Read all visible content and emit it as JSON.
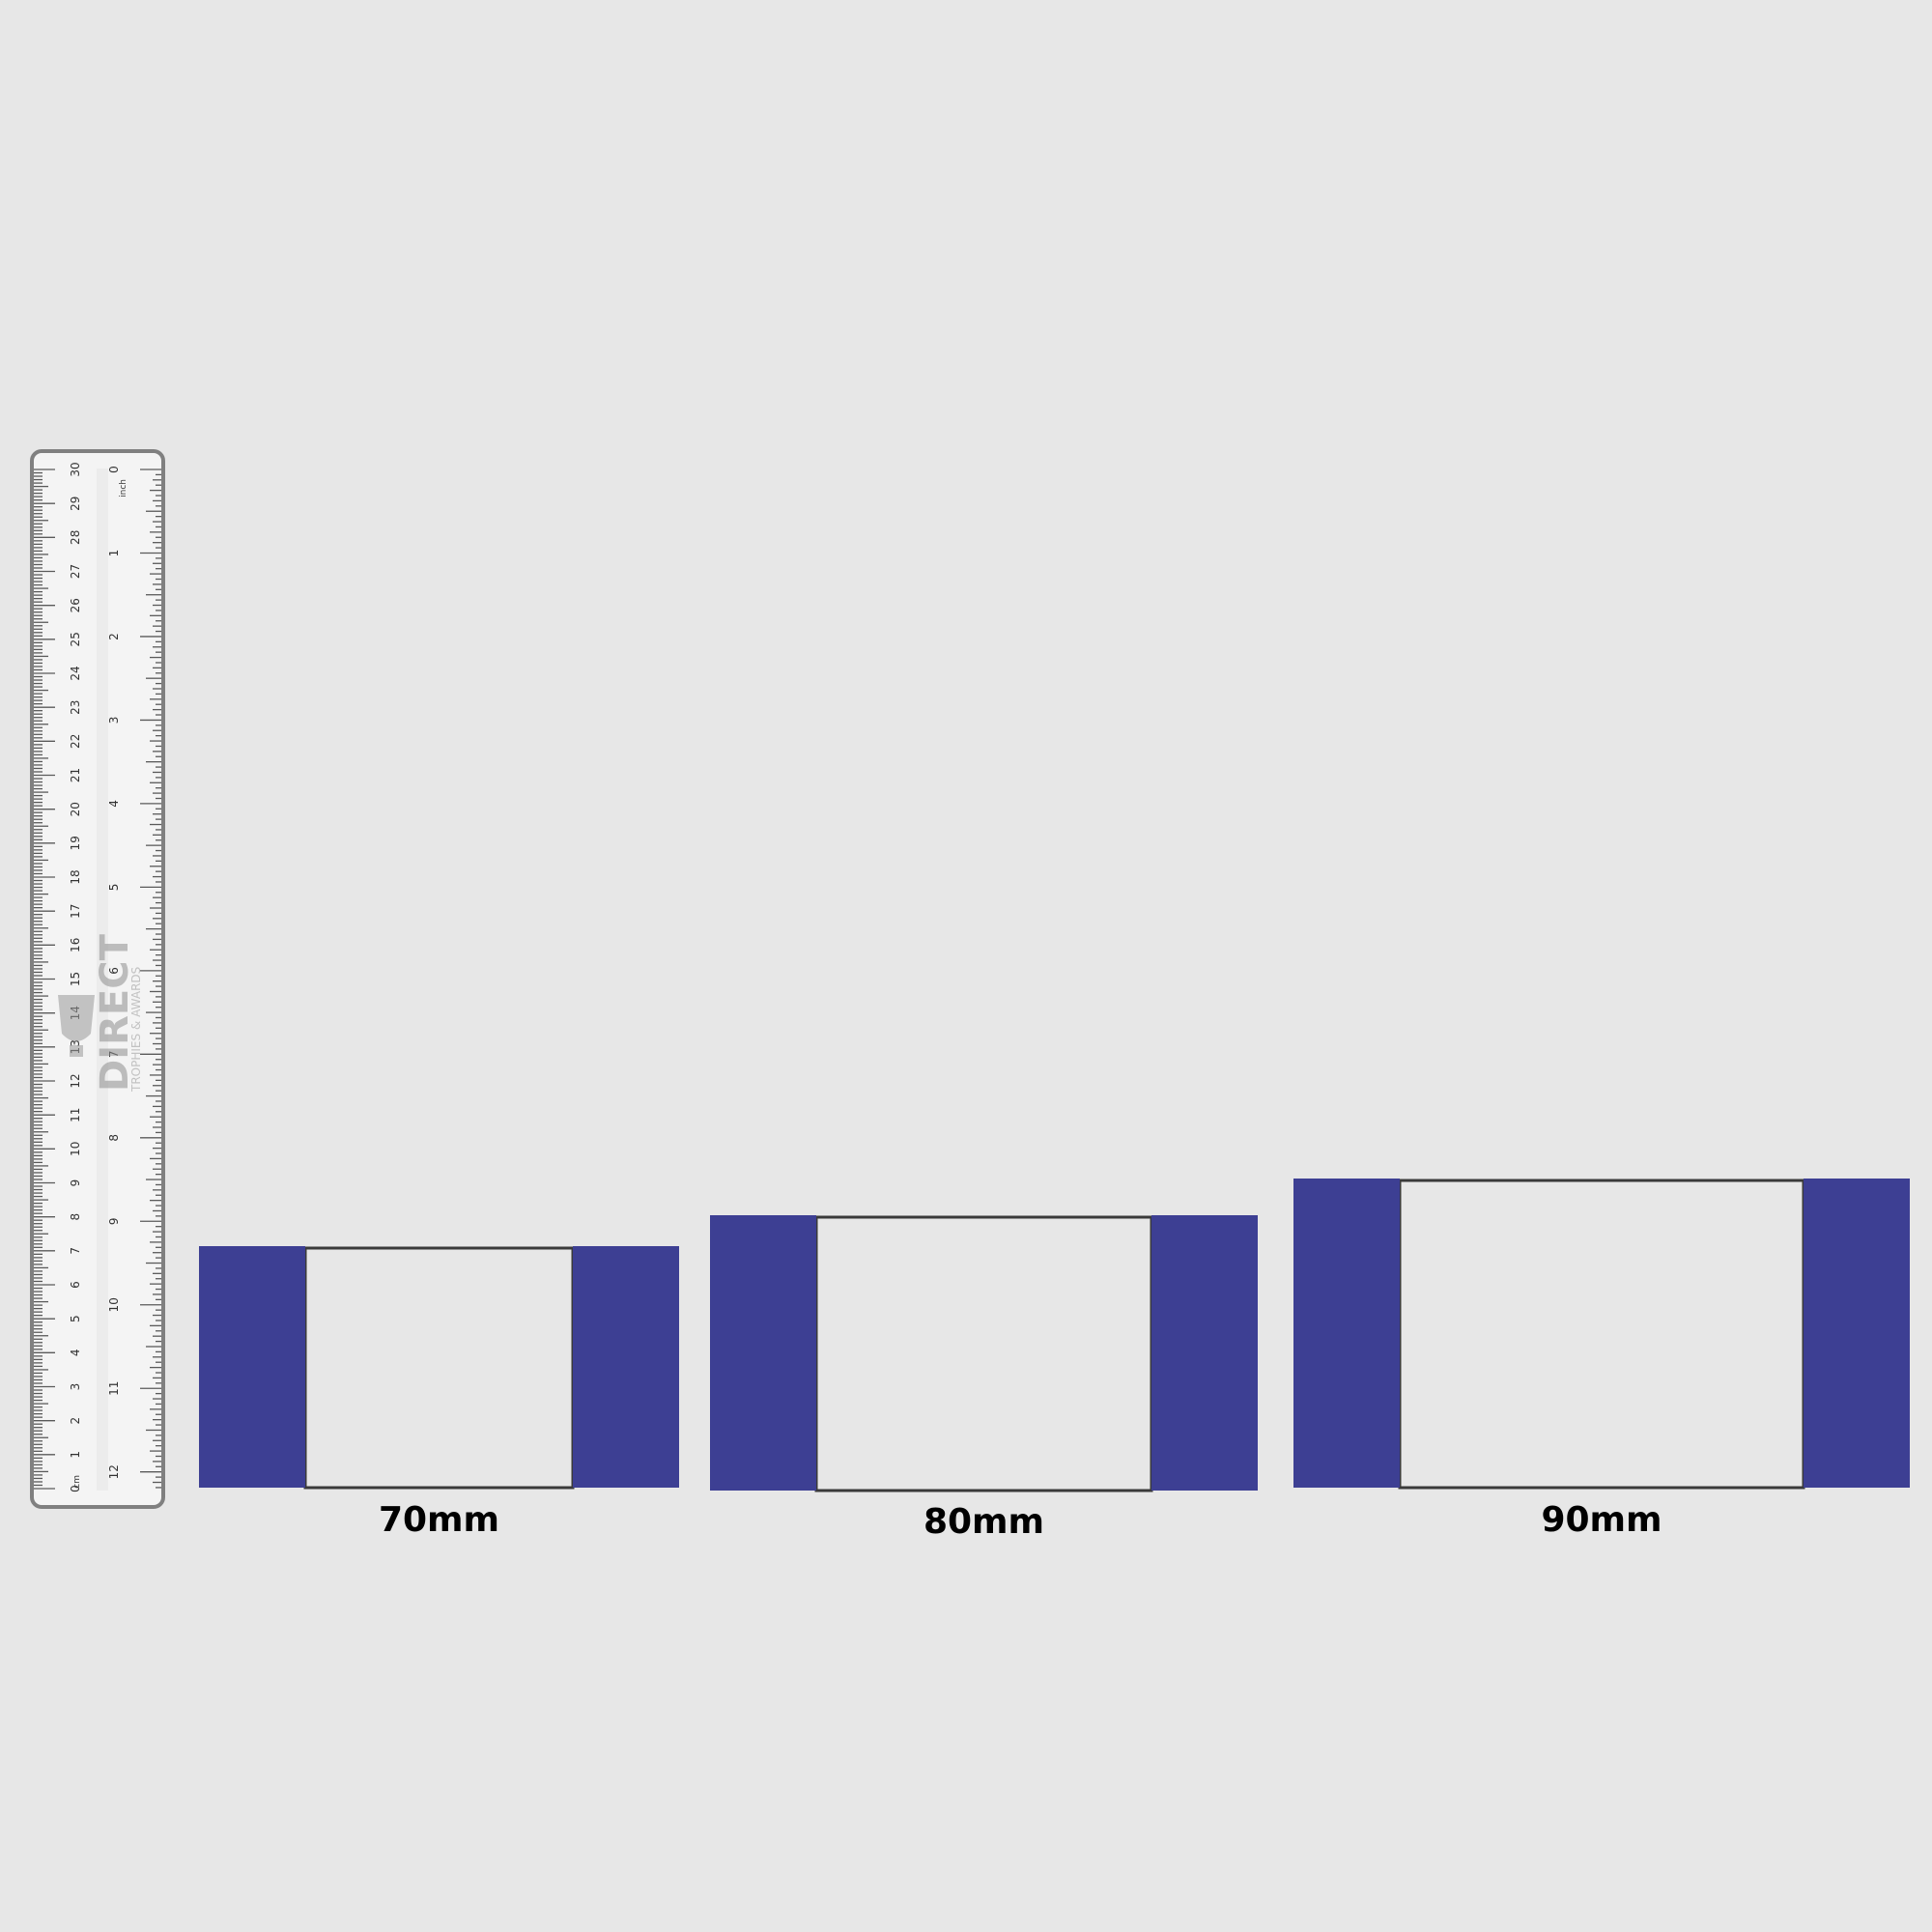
{
  "ruler": {
    "cm_unit": "cm",
    "inch_unit": "inch",
    "cm_numbers": [
      "0",
      "1",
      "2",
      "3",
      "4",
      "5",
      "6",
      "7",
      "8",
      "9",
      "10",
      "11",
      "12",
      "13",
      "14",
      "15",
      "16",
      "17",
      "18",
      "19",
      "20",
      "21",
      "22",
      "23",
      "24",
      "25",
      "26",
      "27",
      "28",
      "29",
      "30"
    ],
    "inch_numbers": [
      "0",
      "1",
      "2",
      "3",
      "4",
      "5",
      "6",
      "7",
      "8",
      "9",
      "10",
      "11",
      "12"
    ],
    "brand": "DIRECT",
    "brand_tagline": "TROPHIES & AWARDS"
  },
  "colors": {
    "background": "#e7e7e7",
    "band": "#3d3f93",
    "outline": "#3a3a3a",
    "ruler_body": "#f4f4f4",
    "ruler_border": "#808080"
  },
  "samples": [
    {
      "label": "70mm",
      "width_mm": 70
    },
    {
      "label": "80mm",
      "width_mm": 80
    },
    {
      "label": "90mm",
      "width_mm": 90
    }
  ]
}
